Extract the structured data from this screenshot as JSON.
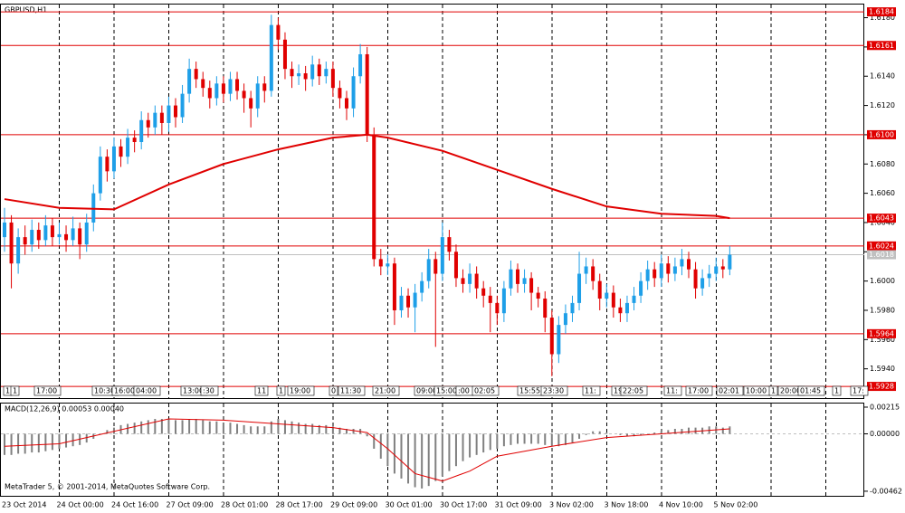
{
  "chart_data": {
    "type": "candlestick",
    "title": "GBPUSD,H1",
    "copyright": "MetaTrader 5, © 2001-2014, MetaQuotes Software Corp.",
    "indicator_label": "MACD(12,26,9) 0.00053 0.00040",
    "up_color": "#1e9fe8",
    "down_color": "#e00000",
    "ma_color": "#e00000",
    "level_color": "#e00000",
    "ylim": [
      1.592,
      1.6189
    ],
    "yticks": [
      {
        "value": 1.594,
        "label": "1.5940"
      },
      {
        "value": 1.596,
        "label": "1.5960"
      },
      {
        "value": 1.598,
        "label": "1.5980"
      },
      {
        "value": 1.6,
        "label": "1.6000"
      },
      {
        "value": 1.602,
        "label": "1.6020"
      },
      {
        "value": 1.604,
        "label": "1.6040"
      },
      {
        "value": 1.606,
        "label": "1.6060"
      },
      {
        "value": 1.608,
        "label": "1.6080"
      },
      {
        "value": 1.61,
        "label": "1.6100"
      },
      {
        "value": 1.612,
        "label": "1.6120"
      },
      {
        "value": 1.614,
        "label": "1.6140"
      },
      {
        "value": 1.616,
        "label": "1.6160"
      },
      {
        "value": 1.618,
        "label": "1.6180"
      }
    ],
    "levels": [
      {
        "value": 1.6184,
        "label": "1.6184"
      },
      {
        "value": 1.6161,
        "label": "1.6161"
      },
      {
        "value": 1.61,
        "label": "1.6100"
      },
      {
        "value": 1.6043,
        "label": "1.6043"
      },
      {
        "value": 1.6024,
        "label": "1.6024"
      },
      {
        "value": 1.5964,
        "label": "1.5964"
      },
      {
        "value": 1.5928,
        "label": "1.5928"
      }
    ],
    "current_price": {
      "value": 1.6018,
      "label": "1.6018"
    },
    "categories": [
      "23 Oct 2014",
      "24 Oct 00:00",
      "24 Oct 16:00",
      "27 Oct 09:00",
      "28 Oct 01:00",
      "28 Oct 17:00",
      "29 Oct 09:00",
      "30 Oct 01:00",
      "30 Oct 17:00",
      "31 Oct 09:00",
      "3 Nov 02:00",
      "3 Nov 18:00",
      "4 Nov 10:00",
      "5 Nov 02:00"
    ],
    "tags": [
      "1",
      "1",
      "17:00",
      "10:30",
      "16:00",
      "04:00",
      "13:00",
      ":30",
      "11",
      "1",
      "19:00",
      "0",
      "11:30",
      "21:00",
      "09:00",
      "15:00",
      ":00",
      "02:05",
      "15:55",
      "23:30",
      "11:",
      "19",
      "22:05",
      "11:",
      "17:00",
      "02:01",
      "10:00",
      "1",
      "20:00",
      "01:45",
      "1",
      "17:"
    ],
    "candles": [
      [
        1.603,
        1.605,
        1.602,
        1.604
      ],
      [
        1.604,
        1.6045,
        1.5995,
        1.6012
      ],
      [
        1.6012,
        1.6036,
        1.6005,
        1.603
      ],
      [
        1.603,
        1.6038,
        1.6018,
        1.6025
      ],
      [
        1.6025,
        1.6042,
        1.602,
        1.6035
      ],
      [
        1.6035,
        1.604,
        1.6022,
        1.6028
      ],
      [
        1.6028,
        1.6045,
        1.6024,
        1.6038
      ],
      [
        1.6038,
        1.6043,
        1.6024,
        1.603
      ],
      [
        1.603,
        1.604,
        1.6025,
        1.6032
      ],
      [
        1.6032,
        1.6038,
        1.602,
        1.6028
      ],
      [
        1.6028,
        1.6044,
        1.6024,
        1.6036
      ],
      [
        1.6036,
        1.604,
        1.6015,
        1.6025
      ],
      [
        1.6025,
        1.6046,
        1.602,
        1.604
      ],
      [
        1.604,
        1.6066,
        1.6034,
        1.606
      ],
      [
        1.606,
        1.6092,
        1.6055,
        1.6085
      ],
      [
        1.6085,
        1.609,
        1.6068,
        1.6075
      ],
      [
        1.6075,
        1.6098,
        1.607,
        1.6092
      ],
      [
        1.6092,
        1.6097,
        1.6078,
        1.6085
      ],
      [
        1.6085,
        1.6104,
        1.608,
        1.6098
      ],
      [
        1.6098,
        1.6103,
        1.6088,
        1.6095
      ],
      [
        1.6095,
        1.6116,
        1.609,
        1.611
      ],
      [
        1.611,
        1.6115,
        1.6098,
        1.6105
      ],
      [
        1.6105,
        1.612,
        1.61,
        1.6115
      ],
      [
        1.6115,
        1.612,
        1.61,
        1.6108
      ],
      [
        1.6108,
        1.6126,
        1.6102,
        1.612
      ],
      [
        1.612,
        1.6125,
        1.6105,
        1.6112
      ],
      [
        1.6112,
        1.6134,
        1.6108,
        1.6128
      ],
      [
        1.6128,
        1.6152,
        1.6122,
        1.6145
      ],
      [
        1.6145,
        1.615,
        1.6132,
        1.6138
      ],
      [
        1.6138,
        1.6143,
        1.6126,
        1.6132
      ],
      [
        1.6132,
        1.6137,
        1.6118,
        1.6125
      ],
      [
        1.6125,
        1.614,
        1.612,
        1.6135
      ],
      [
        1.6135,
        1.614,
        1.6122,
        1.6128
      ],
      [
        1.6128,
        1.6143,
        1.6123,
        1.6138
      ],
      [
        1.6138,
        1.6143,
        1.6124,
        1.613
      ],
      [
        1.613,
        1.6135,
        1.6115,
        1.6125
      ],
      [
        1.6125,
        1.613,
        1.6105,
        1.6118
      ],
      [
        1.6118,
        1.614,
        1.6112,
        1.6135
      ],
      [
        1.6135,
        1.614,
        1.6122,
        1.613
      ],
      [
        1.613,
        1.6182,
        1.6126,
        1.6175
      ],
      [
        1.6175,
        1.618,
        1.6158,
        1.6165
      ],
      [
        1.6165,
        1.617,
        1.6138,
        1.6145
      ],
      [
        1.6145,
        1.615,
        1.6132,
        1.614
      ],
      [
        1.614,
        1.6148,
        1.6134,
        1.6142
      ],
      [
        1.6142,
        1.6147,
        1.613,
        1.6138
      ],
      [
        1.6138,
        1.6154,
        1.6133,
        1.6148
      ],
      [
        1.6148,
        1.6152,
        1.6134,
        1.614
      ],
      [
        1.614,
        1.615,
        1.6135,
        1.6145
      ],
      [
        1.6145,
        1.615,
        1.6126,
        1.6132
      ],
      [
        1.6132,
        1.6137,
        1.6118,
        1.6125
      ],
      [
        1.6125,
        1.613,
        1.611,
        1.6118
      ],
      [
        1.6118,
        1.6146,
        1.6112,
        1.614
      ],
      [
        1.614,
        1.6162,
        1.6135,
        1.6155
      ],
      [
        1.6155,
        1.616,
        1.6095,
        1.61
      ],
      [
        1.61,
        1.6105,
        1.601,
        1.6015
      ],
      [
        1.6015,
        1.6022,
        1.6004,
        1.601
      ],
      [
        1.601,
        1.6018,
        1.6004,
        1.6012
      ],
      [
        1.6012,
        1.6016,
        1.597,
        1.598
      ],
      [
        1.598,
        1.5996,
        1.5975,
        1.599
      ],
      [
        1.599,
        1.5995,
        1.5975,
        1.5982
      ],
      [
        1.5982,
        1.5998,
        1.5965,
        1.5992
      ],
      [
        1.5992,
        1.6006,
        1.5986,
        1.6
      ],
      [
        1.6,
        1.6022,
        1.5995,
        1.6015
      ],
      [
        1.6015,
        1.602,
        1.5955,
        1.6005
      ],
      [
        1.6005,
        1.604,
        1.6,
        1.603
      ],
      [
        1.603,
        1.6035,
        1.6014,
        1.602
      ],
      [
        1.602,
        1.6025,
        1.5996,
        1.6002
      ],
      [
        1.6002,
        1.6008,
        1.5992,
        1.5998
      ],
      [
        1.5998,
        1.6012,
        1.5992,
        1.6005
      ],
      [
        1.6005,
        1.601,
        1.5988,
        1.5995
      ],
      [
        1.5995,
        1.6,
        1.5982,
        1.599
      ],
      [
        1.599,
        1.5996,
        1.5965,
        1.5985
      ],
      [
        1.5985,
        1.599,
        1.597,
        1.5978
      ],
      [
        1.5978,
        1.6,
        1.5972,
        1.5995
      ],
      [
        1.5995,
        1.6014,
        1.599,
        1.6008
      ],
      [
        1.6008,
        1.6012,
        1.5992,
        1.5998
      ],
      [
        1.5998,
        1.6008,
        1.5992,
        1.6002
      ],
      [
        1.6002,
        1.6006,
        1.598,
        1.5992
      ],
      [
        1.5992,
        1.5996,
        1.5982,
        1.5988
      ],
      [
        1.5988,
        1.5993,
        1.5965,
        1.5975
      ],
      [
        1.5975,
        1.598,
        1.5935,
        1.595
      ],
      [
        1.595,
        1.5976,
        1.5944,
        1.597
      ],
      [
        1.597,
        1.5984,
        1.5964,
        1.5978
      ],
      [
        1.5978,
        1.599,
        1.5972,
        1.5985
      ],
      [
        1.5985,
        1.602,
        1.598,
        1.6005
      ],
      [
        1.6005,
        1.6016,
        1.5998,
        1.601
      ],
      [
        1.601,
        1.6015,
        1.5994,
        1.6
      ],
      [
        1.6,
        1.6005,
        1.598,
        1.5988
      ],
      [
        1.5988,
        1.5998,
        1.5982,
        1.5992
      ],
      [
        1.5992,
        1.5997,
        1.5975,
        1.5982
      ],
      [
        1.5982,
        1.5988,
        1.5972,
        1.5978
      ],
      [
        1.5978,
        1.599,
        1.5972,
        1.5985
      ],
      [
        1.5985,
        1.5996,
        1.598,
        1.599
      ],
      [
        1.599,
        1.6006,
        1.5985,
        1.6
      ],
      [
        1.6,
        1.6014,
        1.5994,
        1.6008
      ],
      [
        1.6008,
        1.6013,
        1.5996,
        1.6002
      ],
      [
        1.6002,
        1.6018,
        1.5996,
        1.6012
      ],
      [
        1.6012,
        1.6017,
        1.5999,
        1.6005
      ],
      [
        1.6005,
        1.6016,
        1.6,
        1.601
      ],
      [
        1.601,
        1.6022,
        1.6004,
        1.6015
      ],
      [
        1.6015,
        1.602,
        1.6002,
        1.6008
      ],
      [
        1.6008,
        1.6013,
        1.5988,
        1.5995
      ],
      [
        1.5995,
        1.6008,
        1.599,
        1.6002
      ],
      [
        1.6002,
        1.6011,
        1.5996,
        1.6005
      ],
      [
        1.6005,
        1.6016,
        1.6,
        1.601
      ],
      [
        1.601,
        1.6015,
        1.6002,
        1.6008
      ],
      [
        1.6008,
        1.6024,
        1.6004,
        1.6018
      ]
    ],
    "ma": {
      "x": [
        0,
        8,
        16,
        24,
        32,
        40,
        48,
        53,
        56,
        64,
        72,
        80,
        88,
        96,
        104,
        106
      ],
      "values": [
        1.6056,
        1.605,
        1.6049,
        1.6066,
        1.608,
        1.609,
        1.6098,
        1.61,
        1.6098,
        1.6089,
        1.6076,
        1.6063,
        1.6051,
        1.6046,
        1.60445,
        1.6043
      ]
    },
    "macd": {
      "ylim": [
        -0.00499,
        0.00244
      ],
      "yticks": [
        {
          "value": 0.00215,
          "label": "0.00215"
        },
        {
          "value": 0,
          "label": "0.00000"
        },
        {
          "value": -0.00462,
          "label": "-0.00462"
        }
      ],
      "hist_color": "#808080",
      "signal_color": "#e00000",
      "histogram": [
        -0.0017,
        -0.0017,
        -0.0016,
        -0.0016,
        -0.0015,
        -0.0015,
        -0.0014,
        -0.0013,
        -0.0012,
        -0.0011,
        -0.001,
        -0.0009,
        -0.0007,
        -0.0004,
        0.0,
        0.0003,
        0.0005,
        0.0007,
        0.0008,
        0.0009,
        0.001,
        0.0011,
        0.0012,
        0.0012,
        0.0012,
        0.0011,
        0.0011,
        0.0012,
        0.0012,
        0.0011,
        0.001,
        0.001,
        0.0009,
        0.0009,
        0.0008,
        0.0007,
        0.0006,
        0.0006,
        0.0006,
        0.001,
        0.0012,
        0.0011,
        0.001,
        0.0009,
        0.0008,
        0.0008,
        0.0007,
        0.0007,
        0.0006,
        0.0005,
        0.0004,
        0.0004,
        0.0004,
        -0.0002,
        -0.0012,
        -0.002,
        -0.0026,
        -0.0032,
        -0.0036,
        -0.004,
        -0.0043,
        -0.0044,
        -0.0042,
        -0.0038,
        -0.0034,
        -0.003,
        -0.0026,
        -0.0022,
        -0.0019,
        -0.0017,
        -0.0015,
        -0.0013,
        -0.0012,
        -0.001,
        -0.0009,
        -0.0008,
        -0.0008,
        -0.0008,
        -0.0008,
        -0.0009,
        -0.001,
        -0.001,
        -0.0009,
        -0.0007,
        -0.0004,
        -0.0001,
        0.0002,
        0.0002,
        0.0001,
        0.0,
        -0.0001,
        -0.0002,
        -0.0002,
        -0.0001,
        0.0,
        0.0001,
        0.0002,
        0.0003,
        0.0004,
        0.0004,
        0.0005,
        0.0005,
        0.0005,
        0.0006,
        0.0006,
        0.0005,
        0.0006
      ],
      "signal": {
        "x": [
          0,
          8,
          16,
          24,
          32,
          40,
          48,
          53,
          56,
          60,
          64,
          68,
          72,
          80,
          88,
          96,
          106
        ],
        "values": [
          -0.001,
          -0.0008,
          0.0002,
          0.0012,
          0.0011,
          0.0008,
          0.0005,
          0.0001,
          -0.0012,
          -0.0032,
          -0.0038,
          -0.003,
          -0.0018,
          -0.001,
          -0.0003,
          0.0,
          0.0004
        ]
      }
    }
  }
}
